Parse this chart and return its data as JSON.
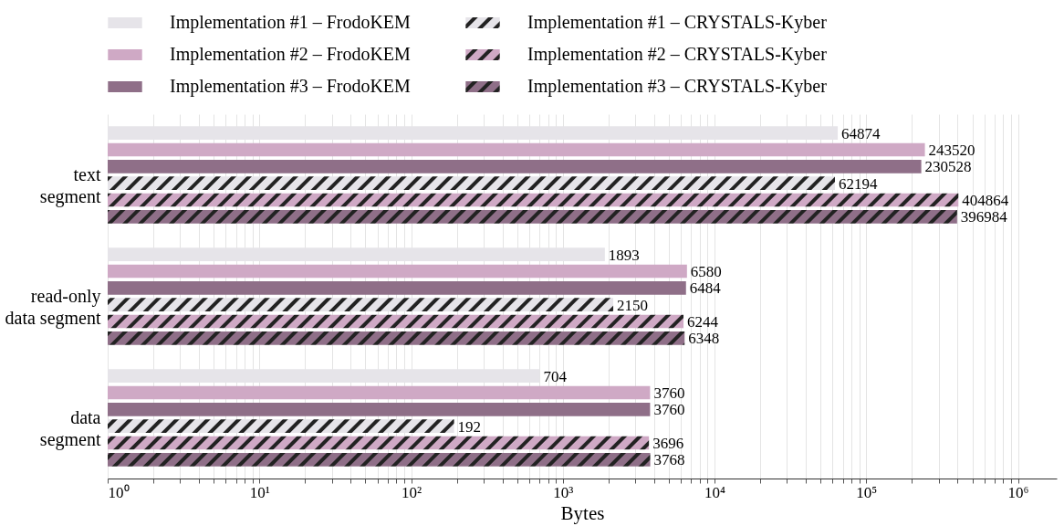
{
  "chart_data": {
    "type": "bar",
    "orientation": "horizontal",
    "xlabel": "Bytes",
    "log": "x",
    "grid": "x",
    "legend": "top",
    "data_labels": true,
    "categories": [
      "text segment",
      "read-only data segment",
      "data segment"
    ],
    "xlim": [
      1,
      1800000
    ],
    "xticks": [
      {
        "value": 1,
        "label": "10⁰"
      },
      {
        "value": 2,
        "label": null
      },
      {
        "value": 3,
        "label": null
      },
      {
        "value": 4,
        "label": null
      },
      {
        "value": 5,
        "label": null
      },
      {
        "value": 6,
        "label": null
      },
      {
        "value": 7,
        "label": null
      },
      {
        "value": 8,
        "label": null
      },
      {
        "value": 9,
        "label": null
      },
      {
        "value": 10,
        "label": "10¹"
      },
      {
        "value": 20,
        "label": null
      },
      {
        "value": 30,
        "label": null
      },
      {
        "value": 40,
        "label": null
      },
      {
        "value": 50,
        "label": null
      },
      {
        "value": 60,
        "label": null
      },
      {
        "value": 70,
        "label": null
      },
      {
        "value": 80,
        "label": null
      },
      {
        "value": 90,
        "label": null
      },
      {
        "value": 100,
        "label": "10²"
      },
      {
        "value": 200,
        "label": null
      },
      {
        "value": 300,
        "label": null
      },
      {
        "value": 400,
        "label": null
      },
      {
        "value": 500,
        "label": null
      },
      {
        "value": 600,
        "label": null
      },
      {
        "value": 700,
        "label": null
      },
      {
        "value": 800,
        "label": null
      },
      {
        "value": 900,
        "label": null
      },
      {
        "value": 1000,
        "label": "10³"
      },
      {
        "value": 2000,
        "label": null
      },
      {
        "value": 3000,
        "label": null
      },
      {
        "value": 4000,
        "label": null
      },
      {
        "value": 5000,
        "label": null
      },
      {
        "value": 6000,
        "label": null
      },
      {
        "value": 7000,
        "label": null
      },
      {
        "value": 8000,
        "label": null
      },
      {
        "value": 9000,
        "label": null
      },
      {
        "value": 10000,
        "label": "10⁴"
      },
      {
        "value": 20000,
        "label": null
      },
      {
        "value": 30000,
        "label": null
      },
      {
        "value": 40000,
        "label": null
      },
      {
        "value": 50000,
        "label": null
      },
      {
        "value": 60000,
        "label": null
      },
      {
        "value": 70000,
        "label": null
      },
      {
        "value": 80000,
        "label": null
      },
      {
        "value": 90000,
        "label": null
      },
      {
        "value": 100000,
        "label": "10⁵"
      },
      {
        "value": 200000,
        "label": null
      },
      {
        "value": 300000,
        "label": null
      },
      {
        "value": 400000,
        "label": null
      },
      {
        "value": 500000,
        "label": null
      },
      {
        "value": 600000,
        "label": null
      },
      {
        "value": 700000,
        "label": null
      },
      {
        "value": 800000,
        "label": null
      },
      {
        "value": 900000,
        "label": null
      },
      {
        "value": 1000000,
        "label": "10⁶"
      }
    ],
    "series": [
      {
        "name": "Implementation #1 – FrodoKEM",
        "color": "#e6e4e9",
        "values": [
          64874,
          1893,
          704
        ]
      },
      {
        "name": "Implementation #2 – FrodoKEM",
        "color": "#cfa9c5",
        "values": [
          243520,
          6580,
          3760
        ]
      },
      {
        "name": "Implementation #3 – FrodoKEM",
        "color": "#8f6f88",
        "values": [
          230528,
          6484,
          3760
        ]
      },
      {
        "name": "Implementation #1 – CRYSTALS-Kyber",
        "color": "#e6e4e9",
        "values": [
          62194,
          2150,
          192
        ]
      },
      {
        "name": "Implementation #2 – CRYSTALS-Kyber",
        "color": "#cfa9c5",
        "values": [
          404864,
          6244,
          3696
        ]
      },
      {
        "name": "Implementation #3 – CRYSTALS-Kyber",
        "color": "#8f6f88",
        "values": [
          396984,
          6348,
          3768
        ]
      }
    ]
  }
}
